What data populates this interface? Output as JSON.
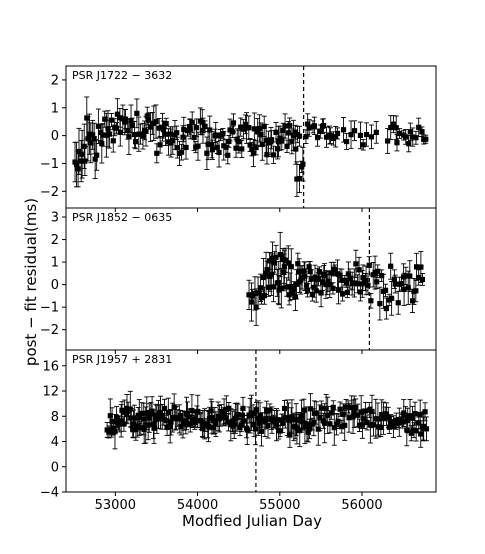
{
  "figure": {
    "xlabel": "Modfied Julian Day",
    "ylabel": "post − fit residual(ms)"
  },
  "chart_data": [
    {
      "type": "scatter",
      "panel_label": "PSR J1722 − 3632",
      "xlim": [
        52400,
        56900
      ],
      "ylim": [
        -2.6,
        2.5
      ],
      "yticks": [
        -2,
        -1,
        0,
        1,
        2
      ],
      "xticks": [
        53000,
        54000,
        55000,
        56000
      ],
      "vline_x": 55290,
      "series_spec": [
        {
          "from": 52500,
          "to": 52900,
          "n": 22,
          "center": -0.2,
          "amp": 0.9,
          "err": 0.7,
          "start": -1.1
        },
        {
          "from": 52900,
          "to": 53500,
          "n": 30,
          "center": 0.4,
          "amp": 0.6,
          "err": 0.5
        },
        {
          "from": 53500,
          "to": 55250,
          "n": 90,
          "center": -0.1,
          "amp": 0.55,
          "err": 0.45
        },
        {
          "from": 55200,
          "to": 55300,
          "n": 4,
          "center": -1.2,
          "amp": 0.6,
          "err": 0.5
        },
        {
          "from": 55300,
          "to": 55700,
          "n": 14,
          "center": 0.1,
          "amp": 0.25,
          "err": 0.3
        },
        {
          "from": 55700,
          "to": 56200,
          "n": 10,
          "center": -0.1,
          "amp": 0.3,
          "err": 0.4
        },
        {
          "from": 56300,
          "to": 56800,
          "n": 16,
          "center": 0.1,
          "amp": 0.35,
          "err": 0.35
        }
      ]
    },
    {
      "type": "scatter",
      "panel_label": "PSR J1852 − 0635",
      "xlim": [
        52400,
        56900
      ],
      "ylim": [
        -2.9,
        3.4
      ],
      "yticks": [
        -2,
        -1,
        0,
        1,
        2,
        3
      ],
      "xticks": [
        53000,
        54000,
        55000,
        56000
      ],
      "vline_x": 56090,
      "series_spec": [
        {
          "from": 54620,
          "to": 54800,
          "n": 8,
          "center": -0.5,
          "amp": 0.5,
          "err": 0.7
        },
        {
          "from": 54800,
          "to": 55150,
          "n": 26,
          "center": 0.5,
          "amp": 0.8,
          "err": 0.8
        },
        {
          "from": 55150,
          "to": 55600,
          "n": 30,
          "center": 0.2,
          "amp": 0.6,
          "err": 0.5
        },
        {
          "from": 55600,
          "to": 56100,
          "n": 28,
          "center": 0.2,
          "amp": 0.6,
          "err": 0.5
        },
        {
          "from": 56100,
          "to": 56750,
          "n": 30,
          "center": -0.1,
          "amp": 0.9,
          "err": 0.6
        }
      ]
    },
    {
      "type": "scatter",
      "panel_label": "PSR J1957 + 2831",
      "xlim": [
        52400,
        56900
      ],
      "ylim": [
        -4,
        18.5
      ],
      "yticks": [
        -4,
        0,
        4,
        8,
        12,
        16
      ],
      "xticks": [
        53000,
        54000,
        55000,
        56000
      ],
      "vline_x": 54710,
      "series_spec": [
        {
          "from": 52900,
          "to": 53500,
          "n": 40,
          "center": 7.2,
          "amp": 1.8,
          "err": 2.2
        },
        {
          "from": 53500,
          "to": 54600,
          "n": 70,
          "center": 7.6,
          "amp": 1.6,
          "err": 2.0
        },
        {
          "from": 54600,
          "to": 55400,
          "n": 50,
          "center": 7.2,
          "amp": 1.8,
          "err": 2.2
        },
        {
          "from": 55400,
          "to": 56200,
          "n": 40,
          "center": 7.8,
          "amp": 1.8,
          "err": 2.4
        },
        {
          "from": 56200,
          "to": 56800,
          "n": 34,
          "center": 7.2,
          "amp": 1.6,
          "err": 2.0
        }
      ]
    }
  ]
}
